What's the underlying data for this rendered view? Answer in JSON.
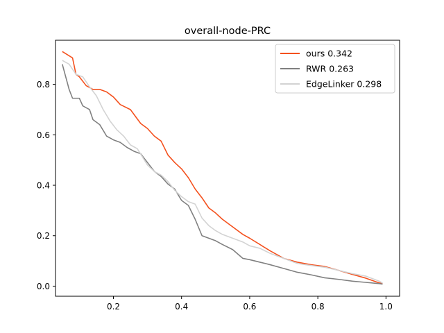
{
  "chart_data": {
    "type": "line",
    "title": "overall-node-PRC",
    "xlabel": "",
    "ylabel": "",
    "xlim": [
      0.03,
      1.04
    ],
    "ylim": [
      -0.04,
      0.975
    ],
    "xticks": [
      0.2,
      0.4,
      0.6,
      0.8,
      1.0
    ],
    "xtick_labels": [
      "0.2",
      "0.4",
      "0.6",
      "0.8",
      "1.0"
    ],
    "yticks": [
      0.0,
      0.2,
      0.4,
      0.6,
      0.8
    ],
    "ytick_labels": [
      "0.0",
      "0.2",
      "0.4",
      "0.6",
      "0.8"
    ],
    "grid": false,
    "legend_position": "top-right",
    "series": [
      {
        "name": "ours 0.342",
        "color": "#f4511e",
        "x": [
          0.05,
          0.08,
          0.09,
          0.1,
          0.12,
          0.14,
          0.16,
          0.18,
          0.2,
          0.22,
          0.25,
          0.28,
          0.3,
          0.32,
          0.34,
          0.36,
          0.38,
          0.4,
          0.42,
          0.44,
          0.46,
          0.48,
          0.5,
          0.52,
          0.55,
          0.58,
          0.6,
          0.63,
          0.66,
          0.7,
          0.74,
          0.78,
          0.82,
          0.86,
          0.9,
          0.94,
          0.98,
          0.99
        ],
        "y": [
          0.93,
          0.905,
          0.84,
          0.83,
          0.795,
          0.78,
          0.78,
          0.77,
          0.75,
          0.72,
          0.7,
          0.645,
          0.625,
          0.595,
          0.575,
          0.52,
          0.49,
          0.465,
          0.43,
          0.385,
          0.35,
          0.31,
          0.29,
          0.265,
          0.235,
          0.205,
          0.19,
          0.165,
          0.14,
          0.11,
          0.095,
          0.085,
          0.078,
          0.063,
          0.047,
          0.032,
          0.013,
          0.01
        ]
      },
      {
        "name": "RWR 0.263",
        "color": "#808080",
        "x": [
          0.05,
          0.07,
          0.08,
          0.1,
          0.11,
          0.13,
          0.14,
          0.16,
          0.18,
          0.2,
          0.22,
          0.24,
          0.26,
          0.28,
          0.3,
          0.32,
          0.34,
          0.36,
          0.38,
          0.4,
          0.42,
          0.44,
          0.46,
          0.48,
          0.5,
          0.52,
          0.55,
          0.58,
          0.6,
          0.63,
          0.66,
          0.7,
          0.74,
          0.78,
          0.82,
          0.86,
          0.9,
          0.94,
          0.98,
          0.99
        ],
        "y": [
          0.88,
          0.78,
          0.745,
          0.745,
          0.715,
          0.7,
          0.66,
          0.64,
          0.595,
          0.58,
          0.57,
          0.55,
          0.535,
          0.525,
          0.49,
          0.455,
          0.435,
          0.405,
          0.385,
          0.34,
          0.32,
          0.265,
          0.2,
          0.19,
          0.18,
          0.165,
          0.145,
          0.11,
          0.105,
          0.095,
          0.085,
          0.07,
          0.055,
          0.045,
          0.033,
          0.027,
          0.02,
          0.015,
          0.01,
          0.008
        ]
      },
      {
        "name": "EdgeLinker 0.298",
        "color": "#d3d3d3",
        "x": [
          0.05,
          0.07,
          0.09,
          0.11,
          0.13,
          0.15,
          0.17,
          0.19,
          0.21,
          0.23,
          0.25,
          0.27,
          0.3,
          0.32,
          0.34,
          0.36,
          0.38,
          0.4,
          0.42,
          0.44,
          0.46,
          0.48,
          0.5,
          0.52,
          0.55,
          0.58,
          0.6,
          0.63,
          0.66,
          0.7,
          0.74,
          0.78,
          0.82,
          0.86,
          0.9,
          0.94,
          0.98,
          0.99
        ],
        "y": [
          0.895,
          0.88,
          0.84,
          0.83,
          0.79,
          0.755,
          0.7,
          0.655,
          0.62,
          0.595,
          0.56,
          0.545,
          0.48,
          0.455,
          0.44,
          0.415,
          0.38,
          0.355,
          0.335,
          0.325,
          0.27,
          0.24,
          0.22,
          0.205,
          0.19,
          0.175,
          0.16,
          0.15,
          0.13,
          0.11,
          0.09,
          0.082,
          0.075,
          0.063,
          0.05,
          0.04,
          0.02,
          0.012
        ]
      }
    ]
  }
}
